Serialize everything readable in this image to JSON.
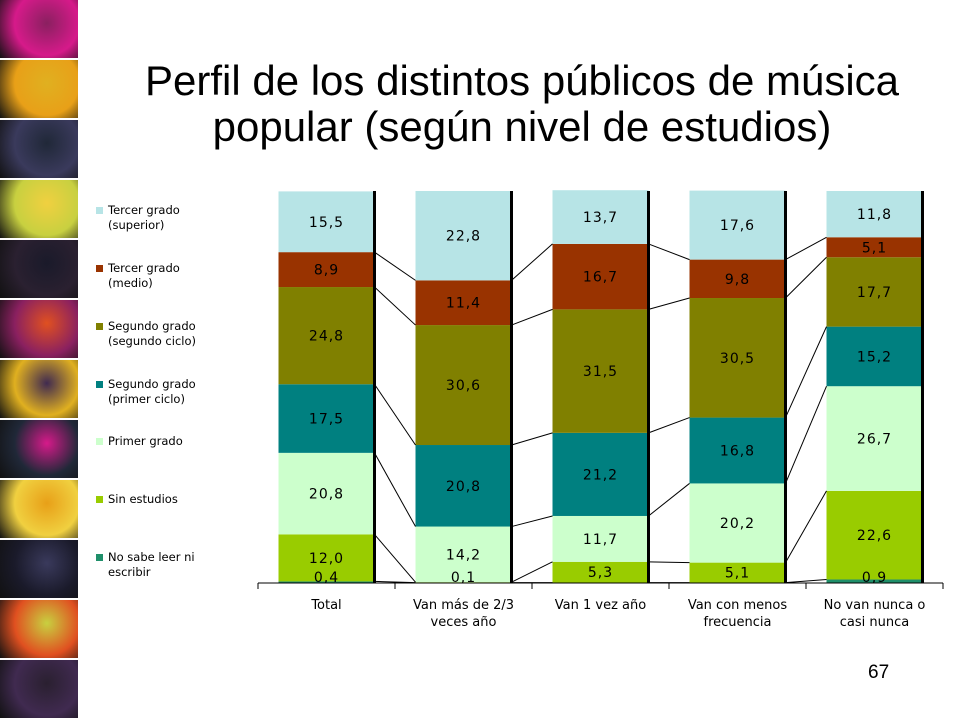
{
  "slide": {
    "title_line1": "Perfil de los distintos públicos de música",
    "title_line2": "popular (según nivel de estudios)",
    "page_number": "67"
  },
  "decor": {
    "strip_colors": [
      "#d61a8a",
      "#e8a018",
      "#3a3a5c",
      "#c8d040",
      "#2a2030",
      "#8a2060",
      "#e0b020",
      "#202838",
      "#f0d040",
      "#1a1a2a",
      "#e05020",
      "#402a50"
    ]
  },
  "chart_data": {
    "type": "bar",
    "stacked": true,
    "categories": [
      "Total",
      "Van más de 2/3\nveces año",
      "Van 1 vez año",
      "Van con menos\nfrecuencia",
      "No van nunca o\ncasi nunca"
    ],
    "series": [
      {
        "name": "No sabe leer ni\nescribir",
        "color": "#1f8f6a",
        "values": [
          0.4,
          0.1,
          0.1,
          0.1,
          0.9
        ],
        "labels": [
          "0,4",
          "0,1",
          "",
          "",
          "0,9"
        ]
      },
      {
        "name": "Sin estudios",
        "color": "#99cc00",
        "values": [
          12.0,
          0.1,
          5.3,
          5.1,
          22.6
        ],
        "labels": [
          "12,0",
          "",
          "5,3",
          "5,1",
          "22,6"
        ]
      },
      {
        "name": "Primer grado",
        "color": "#ccffcc",
        "values": [
          20.8,
          14.2,
          11.7,
          20.2,
          26.7
        ],
        "labels": [
          "20,8",
          "14,2",
          "11,7",
          "20,2",
          "26,7"
        ]
      },
      {
        "name": "Segundo grado\n(primer ciclo)",
        "color": "#008080",
        "values": [
          17.5,
          20.8,
          21.2,
          16.8,
          15.2
        ],
        "labels": [
          "17,5",
          "20,8",
          "21,2",
          "16,8",
          "15,2"
        ]
      },
      {
        "name": "Segundo grado\n(segundo ciclo)",
        "color": "#808000",
        "values": [
          24.8,
          30.6,
          31.5,
          30.5,
          17.7
        ],
        "labels": [
          "24,8",
          "30,6",
          "31,5",
          "30,5",
          "17,7"
        ]
      },
      {
        "name": "Tercer grado\n(medio)",
        "color": "#993300",
        "values": [
          8.9,
          11.4,
          16.7,
          9.8,
          5.1
        ],
        "labels": [
          "8,9",
          "11,4",
          "16,7",
          "9,8",
          "5,1"
        ]
      },
      {
        "name": "Tercer grado\n(superior)",
        "color": "#b7e4e6",
        "values": [
          15.5,
          22.8,
          13.7,
          17.6,
          11.8
        ],
        "labels": [
          "15,5",
          "22,8",
          "13,7",
          "17,6",
          "11,8"
        ]
      }
    ],
    "ylim": [
      0,
      100
    ],
    "legend_position": "left",
    "series_lines": true
  }
}
